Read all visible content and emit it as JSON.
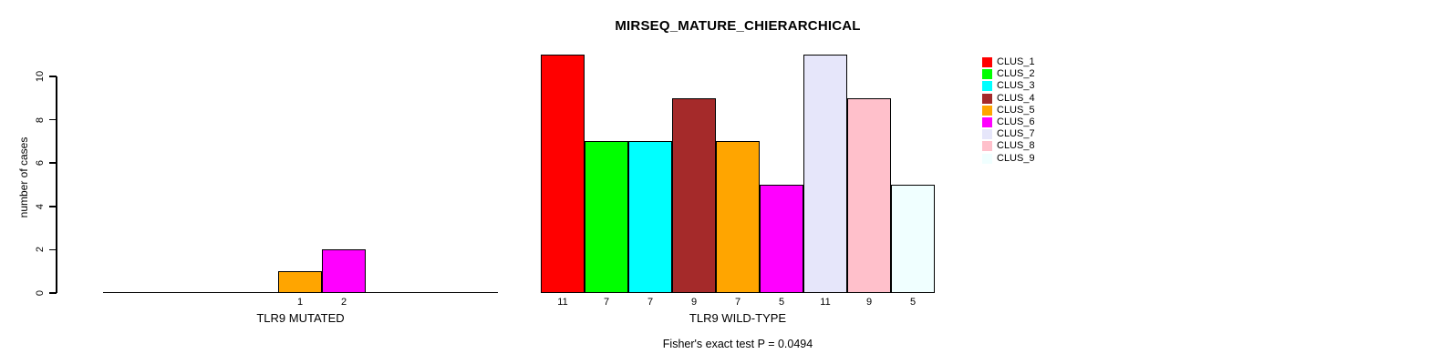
{
  "figure": {
    "background": "#FFFFFF",
    "text_color": "#000000"
  },
  "chart_data": {
    "type": "bar",
    "title": "MIRSEQ_MATURE_CHIERARCHICAL",
    "ylabel": "number of cases",
    "ylim": [
      0,
      10
    ],
    "yticks": [
      0,
      2,
      4,
      6,
      8,
      10
    ],
    "grid": false,
    "legend_position": "right",
    "caption": "Fisher's exact test P = 0.0494",
    "categories": [
      "CLUS_1",
      "CLUS_2",
      "CLUS_3",
      "CLUS_4",
      "CLUS_5",
      "CLUS_6",
      "CLUS_7",
      "CLUS_8",
      "CLUS_9"
    ],
    "panels": [
      {
        "xlabel": "TLR9 MUTATED",
        "values": [
          0,
          0,
          0,
          0,
          1,
          2,
          0,
          0,
          0
        ],
        "bar_labels": [
          "",
          "",
          "",
          "",
          "1",
          "2",
          "",
          "",
          ""
        ]
      },
      {
        "xlabel": "TLR9 WILD-TYPE",
        "values": [
          11,
          7,
          7,
          9,
          7,
          5,
          11,
          9,
          5
        ],
        "bar_labels": [
          "11",
          "7",
          "7",
          "9",
          "7",
          "5",
          "11",
          "9",
          "5"
        ]
      }
    ],
    "legend": [
      {
        "label": "CLUS_1",
        "color": "#FF0000"
      },
      {
        "label": "CLUS_2",
        "color": "#00FF00"
      },
      {
        "label": "CLUS_3",
        "color": "#00FFFF"
      },
      {
        "label": "CLUS_4",
        "color": "#A52A2A"
      },
      {
        "label": "CLUS_5",
        "color": "#FFA500"
      },
      {
        "label": "CLUS_6",
        "color": "#FF00FF"
      },
      {
        "label": "CLUS_7",
        "color": "#E6E6FA"
      },
      {
        "label": "CLUS_8",
        "color": "#FFC0CB"
      },
      {
        "label": "CLUS_9",
        "color": "#F0FFFF"
      }
    ],
    "bar_border_color": "#000000",
    "axis_color": "#000000"
  }
}
